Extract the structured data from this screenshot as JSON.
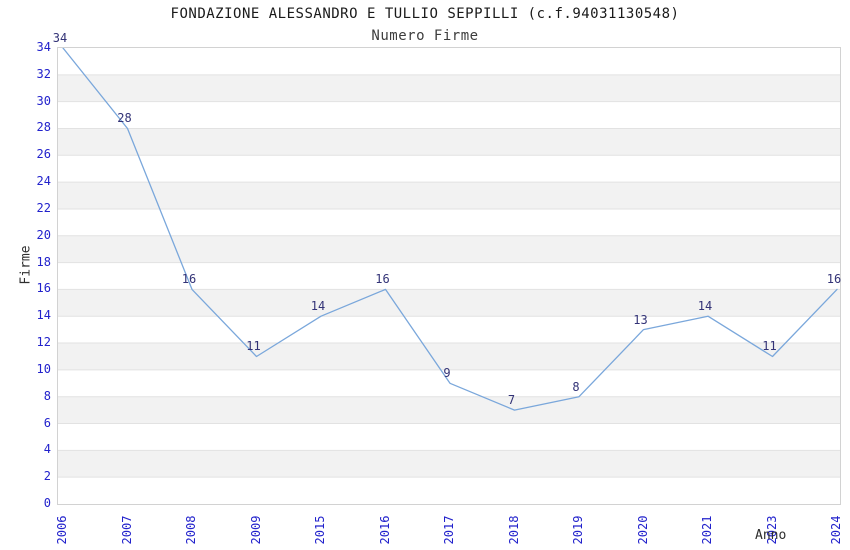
{
  "chart_data": {
    "type": "line",
    "title": "FONDAZIONE ALESSANDRO E TULLIO SEPPILLI (c.f.94031130548)",
    "subtitle": "Numero Firme",
    "xlabel": "Anno",
    "ylabel": "Firme",
    "categories": [
      "2006",
      "2007",
      "2008",
      "2009",
      "2015",
      "2016",
      "2017",
      "2018",
      "2019",
      "2020",
      "2021",
      "2023",
      "2024"
    ],
    "values": [
      34,
      28,
      16,
      11,
      14,
      16,
      9,
      7,
      8,
      13,
      14,
      11,
      16
    ],
    "point_labels": [
      "34",
      "28",
      "16",
      "11",
      "14",
      "16",
      "9",
      "7",
      "8",
      "13",
      "14",
      "11",
      "16"
    ],
    "ylim": [
      0,
      34
    ],
    "ytick_step": 2,
    "yticks": [
      0,
      2,
      4,
      6,
      8,
      10,
      12,
      14,
      16,
      18,
      20,
      22,
      24,
      26,
      28,
      30,
      32,
      34
    ],
    "grid": "horizontal-bands-alternating",
    "legend": "none",
    "colors": {
      "line": "#7aa7db",
      "tick_label": "#2222cc",
      "data_label": "#333377",
      "band_fill": "#f2f2f2",
      "grid_line": "#e2e2e2",
      "plot_border": "#d2d2d2",
      "title_text": "#1a1a1a",
      "subtitle_text": "#3d3d3d",
      "axis_title_text": "#2e2e2e",
      "background": "#ffffff"
    }
  }
}
